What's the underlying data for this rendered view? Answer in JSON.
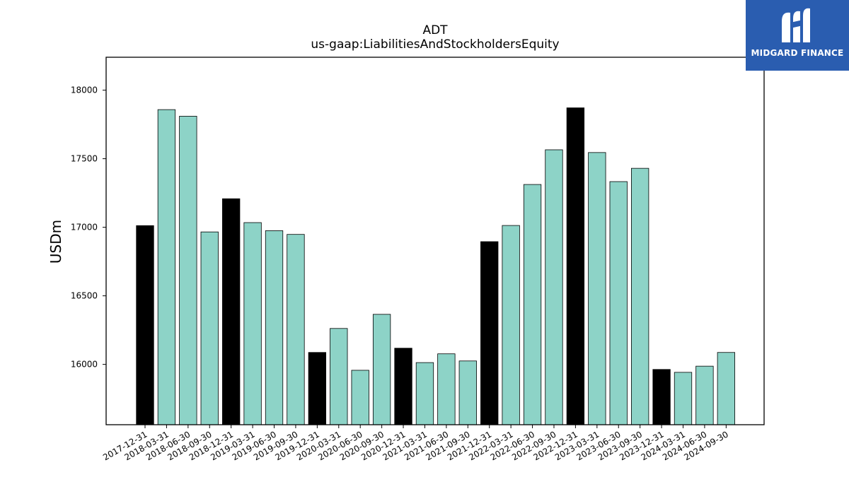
{
  "logo": {
    "text": "MIDGARD FINANCE"
  },
  "colors": {
    "highlight": "#000000",
    "normal": "#8dd3c7",
    "edge": "#000000",
    "logo_bg": "#2a5db0"
  },
  "chart_data": {
    "type": "bar",
    "title": "ADT",
    "subtitle": "us-gaap:LiabilitiesAndStockholdersEquity",
    "xlabel": "",
    "ylabel": "USDm",
    "ylim": [
      15560,
      18240
    ],
    "yticks": [
      16000,
      16500,
      17000,
      17500,
      18000
    ],
    "grid": false,
    "categories": [
      "2017-12-31",
      "2018-03-31",
      "2018-06-30",
      "2018-09-30",
      "2018-12-31",
      "2019-03-31",
      "2019-06-30",
      "2019-09-30",
      "2019-12-31",
      "2020-03-31",
      "2020-06-30",
      "2020-09-30",
      "2020-12-31",
      "2021-03-31",
      "2021-06-30",
      "2021-09-30",
      "2021-12-31",
      "2022-03-31",
      "2022-06-30",
      "2022-09-30",
      "2022-12-31",
      "2023-03-31",
      "2023-06-30",
      "2023-09-30",
      "2023-12-31",
      "2024-03-31",
      "2024-06-30",
      "2024-09-30"
    ],
    "values": [
      17012,
      17858,
      17810,
      16966,
      17208,
      17034,
      16975,
      16948,
      16087,
      16262,
      15957,
      16365,
      16118,
      16013,
      16077,
      16025,
      16895,
      17013,
      17312,
      17565,
      17871,
      17545,
      17333,
      17430,
      15963,
      15942,
      15987,
      16087
    ],
    "highlight": [
      true,
      false,
      false,
      false,
      true,
      false,
      false,
      false,
      true,
      false,
      false,
      false,
      true,
      false,
      false,
      false,
      true,
      false,
      false,
      false,
      true,
      false,
      false,
      false,
      true,
      false,
      false,
      false
    ]
  }
}
